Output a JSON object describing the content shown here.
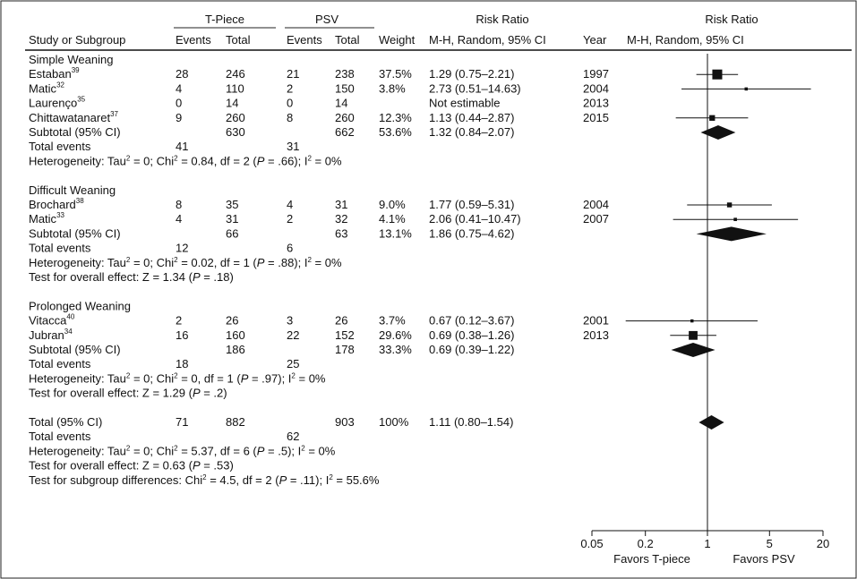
{
  "header": {
    "group_tpiece": "T-Piece",
    "group_psv": "PSV",
    "risk_ratio_1": "Risk Ratio",
    "risk_ratio_2": "Risk Ratio",
    "study_col": "Study or Subgroup",
    "events_1": "Events",
    "total_1": "Total",
    "events_2": "Events",
    "total_2": "Total",
    "weight": "Weight",
    "method_1": "M-H, Random, 95% CI",
    "year": "Year",
    "method_2": "M-H, Random, 95% CI"
  },
  "subgroups": [
    {
      "title": "Simple Weaning",
      "studies": [
        {
          "name": "Estaban",
          "ref": "39",
          "e1": "28",
          "t1": "246",
          "e2": "21",
          "t2": "238",
          "weight": "37.5%",
          "ci_text": "1.29 (0.75–2.21)",
          "year": "1997",
          "rr": 1.29,
          "lo": 0.75,
          "hi": 2.21,
          "w": 37.5
        },
        {
          "name": "Matic",
          "ref": "32",
          "e1": "4",
          "t1": "110",
          "e2": "2",
          "t2": "150",
          "weight": "3.8%",
          "ci_text": "2.73 (0.51–14.63)",
          "year": "2004",
          "rr": 2.73,
          "lo": 0.51,
          "hi": 14.63,
          "w": 3.8
        },
        {
          "name": "Laurenço",
          "ref": "35",
          "e1": "0",
          "t1": "14",
          "e2": "0",
          "t2": "14",
          "weight": "",
          "ci_text": "Not estimable",
          "year": "2013",
          "rr": null,
          "lo": null,
          "hi": null,
          "w": 0
        },
        {
          "name": "Chittawatanaret",
          "ref": "37",
          "e1": "9",
          "t1": "260",
          "e2": "8",
          "t2": "260",
          "weight": "12.3%",
          "ci_text": "1.13 (0.44–2.87)",
          "year": "2015",
          "rr": 1.13,
          "lo": 0.44,
          "hi": 2.87,
          "w": 12.3
        }
      ],
      "subtotal": {
        "label": "Subtotal (95% CI)",
        "t1": "630",
        "t2": "662",
        "weight": "53.6%",
        "ci_text": "1.32 (0.84–2.07)",
        "rr": 1.32,
        "lo": 0.84,
        "hi": 2.07
      },
      "events": {
        "label": "Total events",
        "e1": "41",
        "e2": "31"
      },
      "heterogeneity": {
        "pre": "Heterogeneity: Tau",
        "mid": " = 0; Chi",
        "post": " = 0.84, df = 2 (",
        "p": "P",
        "post2": " = .66); I",
        "tail": " = 0%"
      },
      "overall": null
    },
    {
      "title": "Difficult Weaning",
      "studies": [
        {
          "name": "Brochard",
          "ref": "38",
          "e1": "8",
          "t1": "35",
          "e2": "4",
          "t2": "31",
          "weight": "9.0%",
          "ci_text": "1.77 (0.59–5.31)",
          "year": "2004",
          "rr": 1.77,
          "lo": 0.59,
          "hi": 5.31,
          "w": 9.0
        },
        {
          "name": "Matic",
          "ref": "33",
          "e1": "4",
          "t1": "31",
          "e2": "2",
          "t2": "32",
          "weight": "4.1%",
          "ci_text": "2.06 (0.41–10.47)",
          "year": "2007",
          "rr": 2.06,
          "lo": 0.41,
          "hi": 10.47,
          "w": 4.1
        }
      ],
      "subtotal": {
        "label": "Subtotal (95% CI)",
        "t1": "66",
        "t2": "63",
        "weight": "13.1%",
        "ci_text": "1.86 (0.75–4.62)",
        "rr": 1.86,
        "lo": 0.75,
        "hi": 4.62
      },
      "events": {
        "label": "Total events",
        "e1": "12",
        "e2": "6"
      },
      "heterogeneity": {
        "pre": "Heterogeneity: Tau",
        "mid": " = 0; Chi",
        "post": " = 0.02, df = 1 (",
        "p": "P",
        "post2": " = .88); I",
        "tail": " = 0%"
      },
      "overall": {
        "pre": "Test for overall effect: Z = 1.34 (",
        "p": "P",
        "post": " = .18)"
      }
    },
    {
      "title": "Prolonged Weaning",
      "studies": [
        {
          "name": "Vitacca",
          "ref": "40",
          "e1": "2",
          "t1": "26",
          "e2": "3",
          "t2": "26",
          "weight": "3.7%",
          "ci_text": "0.67 (0.12–3.67)",
          "year": "2001",
          "rr": 0.67,
          "lo": 0.12,
          "hi": 3.67,
          "w": 3.7
        },
        {
          "name": "Jubran",
          "ref": "34",
          "e1": "16",
          "t1": "160",
          "e2": "22",
          "t2": "152",
          "weight": "29.6%",
          "ci_text": "0.69 (0.38–1.26)",
          "year": "2013",
          "rr": 0.69,
          "lo": 0.38,
          "hi": 1.26,
          "w": 29.6
        }
      ],
      "subtotal": {
        "label": "Subtotal (95% CI)",
        "t1": "186",
        "t2": "178",
        "weight": "33.3%",
        "ci_text": "0.69 (0.39–1.22)",
        "rr": 0.69,
        "lo": 0.39,
        "hi": 1.22
      },
      "events": {
        "label": "Total events",
        "e1": "18",
        "e2": "25"
      },
      "heterogeneity": {
        "pre": "Heterogeneity: Tau",
        "mid": " = 0; Chi",
        "post": " = 0, df = 1 (",
        "p": "P",
        "post2": " = .97); I",
        "tail": " = 0%"
      },
      "overall": {
        "pre": "Test for overall effect: Z = 1.29 (",
        "p": "P",
        "post": " = .2)"
      }
    }
  ],
  "total": {
    "label": "Total (95% CI)",
    "e1": "71",
    "t1": "882",
    "t2": "903",
    "weight": "100%",
    "ci_text": "1.11 (0.80–1.54)",
    "rr": 1.11,
    "lo": 0.8,
    "hi": 1.54,
    "events": {
      "label": "Total events",
      "e2": "62"
    },
    "heterogeneity": {
      "pre": "Heterogeneity: Tau",
      "mid": " = 0; Chi",
      "post": " = 5.37, df = 6 (",
      "p": "P",
      "post2": " = .5); I",
      "tail": " = 0%"
    },
    "overall": {
      "pre": "Test for overall effect: Z = 0.63 (",
      "p": "P",
      "post": " = .53)"
    },
    "subgroup_test": {
      "pre": "Test for subgroup differences: Chi",
      "mid": " = 4.5, df = 2 (",
      "p": "P",
      "post": " = .11); I",
      "tail": " = 55.6%"
    }
  },
  "superscript_two": "2",
  "chart_data": {
    "type": "forest",
    "xscale": "log",
    "xlim": [
      0.05,
      20
    ],
    "ticks": [
      0.05,
      0.2,
      1,
      5,
      20
    ],
    "tick_labels": [
      "0.05",
      "0.2",
      "1",
      "5",
      "20"
    ],
    "left_label": "Favors T-piece",
    "right_label": "Favors PSV",
    "reference": 1,
    "colors": {
      "marker": "#111111",
      "line": "#111111"
    }
  }
}
